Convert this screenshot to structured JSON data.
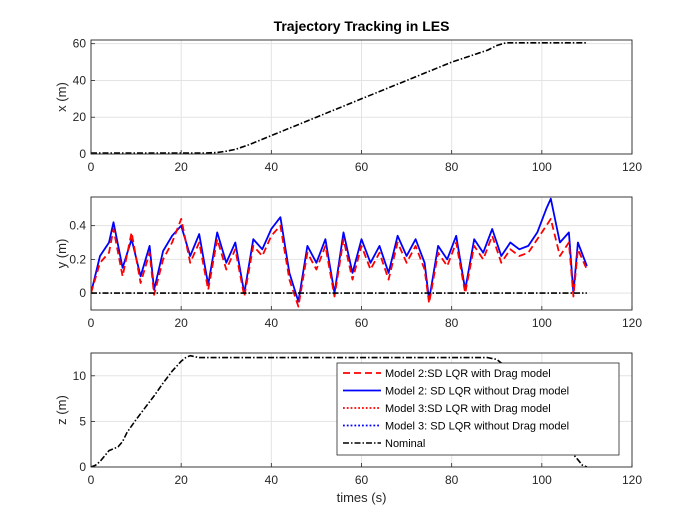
{
  "chart_data": [
    {
      "type": "line",
      "title": "Trajectory Tracking in LES",
      "xlabel": "",
      "ylabel": "x (m)",
      "xlim": [
        0,
        120
      ],
      "ylim": [
        0,
        62
      ],
      "xticks": [
        "0",
        "20",
        "40",
        "60",
        "80",
        "100",
        "120"
      ],
      "yticks": [
        "0",
        "20",
        "40",
        "60"
      ],
      "grid": true,
      "series": [
        {
          "name": "Nominal",
          "x": [
            0,
            25,
            28,
            30,
            32,
            35,
            40,
            50,
            60,
            70,
            80,
            88,
            90,
            92,
            95,
            100,
            110
          ],
          "y": [
            0.5,
            0.5,
            0.8,
            1.5,
            2.5,
            5,
            10,
            20,
            30,
            40,
            50,
            56.5,
            59,
            60.5,
            60.5,
            60.5,
            60.5
          ]
        }
      ]
    },
    {
      "type": "line",
      "title": "",
      "xlabel": "",
      "ylabel": "y (m)",
      "xlim": [
        0,
        120
      ],
      "ylim": [
        -0.1,
        0.57
      ],
      "xticks": [
        "0",
        "20",
        "40",
        "60",
        "80",
        "100",
        "120"
      ],
      "yticks": [
        "0",
        "0.2",
        "0.4"
      ],
      "grid": true,
      "series": [
        {
          "name": "Model 2: SD LQR without Drag model",
          "x": [
            0,
            2,
            4,
            5,
            7,
            9,
            11,
            13,
            14,
            16,
            18,
            20,
            22,
            24,
            26,
            28,
            30,
            32,
            34,
            36,
            38,
            40,
            42,
            44,
            46,
            48,
            50,
            52,
            54,
            56,
            58,
            60,
            62,
            64,
            66,
            68,
            70,
            72,
            74,
            75,
            77,
            79,
            81,
            83,
            85,
            87,
            89,
            91,
            93,
            95,
            97,
            99,
            101,
            102,
            104,
            106,
            107,
            108,
            110
          ],
          "y": [
            0.0,
            0.22,
            0.3,
            0.42,
            0.15,
            0.32,
            0.1,
            0.28,
            0.02,
            0.25,
            0.34,
            0.4,
            0.22,
            0.35,
            0.05,
            0.36,
            0.18,
            0.3,
            0.0,
            0.32,
            0.26,
            0.38,
            0.45,
            0.12,
            -0.05,
            0.28,
            0.18,
            0.32,
            0.0,
            0.36,
            0.12,
            0.32,
            0.18,
            0.28,
            0.12,
            0.34,
            0.22,
            0.32,
            0.18,
            -0.04,
            0.28,
            0.2,
            0.34,
            0.02,
            0.32,
            0.24,
            0.38,
            0.22,
            0.3,
            0.26,
            0.28,
            0.36,
            0.5,
            0.56,
            0.3,
            0.36,
            0.0,
            0.3,
            0.16
          ]
        },
        {
          "name": "Model 2:SD LQR with Drag model",
          "x": [
            0,
            2,
            4,
            5,
            7,
            9,
            11,
            13,
            14,
            16,
            18,
            20,
            22,
            24,
            26,
            28,
            30,
            32,
            34,
            36,
            38,
            40,
            42,
            44,
            46,
            48,
            50,
            52,
            54,
            56,
            58,
            60,
            62,
            64,
            66,
            68,
            70,
            72,
            74,
            75,
            77,
            79,
            81,
            83,
            85,
            87,
            89,
            91,
            93,
            95,
            97,
            99,
            101,
            102,
            104,
            106,
            107,
            108,
            110
          ],
          "y": [
            0.0,
            0.18,
            0.24,
            0.38,
            0.1,
            0.36,
            0.06,
            0.24,
            -0.01,
            0.2,
            0.3,
            0.44,
            0.18,
            0.3,
            0.02,
            0.32,
            0.14,
            0.26,
            -0.02,
            0.28,
            0.22,
            0.34,
            0.4,
            0.08,
            -0.08,
            0.24,
            0.14,
            0.28,
            -0.02,
            0.32,
            0.08,
            0.28,
            0.14,
            0.24,
            0.08,
            0.3,
            0.18,
            0.28,
            0.14,
            -0.06,
            0.24,
            0.16,
            0.3,
            0.0,
            0.28,
            0.2,
            0.34,
            0.18,
            0.26,
            0.22,
            0.24,
            0.32,
            0.4,
            0.44,
            0.22,
            0.3,
            -0.02,
            0.26,
            0.14
          ]
        },
        {
          "name": "Nominal",
          "x": [
            0,
            110
          ],
          "y": [
            0,
            0
          ]
        }
      ]
    },
    {
      "type": "line",
      "title": "",
      "xlabel": "times (s)",
      "ylabel": "z (m)",
      "xlim": [
        0,
        120
      ],
      "ylim": [
        0,
        12.5
      ],
      "xticks": [
        "0",
        "20",
        "40",
        "60",
        "80",
        "100",
        "120"
      ],
      "yticks": [
        "0",
        "5",
        "10"
      ],
      "grid": true,
      "legend": "upper-right",
      "series": [
        {
          "name": "Nominal",
          "x": [
            0,
            1,
            2,
            3,
            4,
            5,
            6,
            7,
            8,
            10,
            12,
            14,
            16,
            18,
            20,
            21,
            22,
            24,
            30,
            40,
            50,
            60,
            70,
            80,
            88,
            90,
            92,
            95,
            100,
            105,
            108,
            109,
            110
          ],
          "y": [
            0,
            0.2,
            0.6,
            1.2,
            1.8,
            2.0,
            2.2,
            2.8,
            3.8,
            5.2,
            6.5,
            7.8,
            9.2,
            10.5,
            11.6,
            12.0,
            12.2,
            12.0,
            12.0,
            12.0,
            12.0,
            12.0,
            12.0,
            12.0,
            12.0,
            11.8,
            11.0,
            9.0,
            5.5,
            2.5,
            0.8,
            0.2,
            0.0
          ]
        }
      ]
    }
  ],
  "legend": {
    "entries": [
      {
        "label": "Model 2:SD LQR with Drag model",
        "color": "#ff0000",
        "style": "dashed"
      },
      {
        "label": "Model 2: SD LQR without Drag model",
        "color": "#0000ff",
        "style": "solid"
      },
      {
        "label": "Model 3:SD LQR with Drag model",
        "color": "#ff0000",
        "style": "dotted"
      },
      {
        "label": "Model 3: SD LQR without Drag model",
        "color": "#0000ff",
        "style": "dotted"
      },
      {
        "label": "Nominal",
        "color": "#000000",
        "style": "dashdot"
      }
    ]
  }
}
